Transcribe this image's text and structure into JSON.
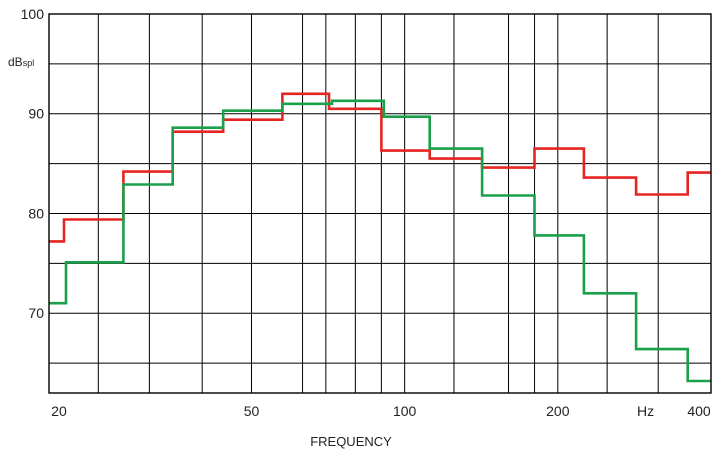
{
  "chart_data": {
    "type": "line",
    "step": true,
    "x_scale": "log",
    "xlabel": "FREQUENCY",
    "xlim": [
      20,
      400
    ],
    "ylim": [
      62,
      100
    ],
    "grid": true,
    "y_unit_main": "dB",
    "y_unit_sub": "spl",
    "x_unit": "Hz",
    "x_ticks": [
      {
        "value": 20,
        "label": "20"
      },
      {
        "value": 50,
        "label": "50"
      },
      {
        "value": 100,
        "label": "100"
      },
      {
        "value": 200,
        "label": "200"
      },
      {
        "value": 400,
        "label": "400"
      }
    ],
    "y_ticks": [
      {
        "value": 100,
        "label": "100"
      },
      {
        "value": 90,
        "label": "90"
      },
      {
        "value": 80,
        "label": "80"
      },
      {
        "value": 70,
        "label": "70"
      }
    ],
    "x_gridlines": [
      25,
      31.5,
      40,
      50,
      63,
      80,
      100,
      125,
      160,
      200,
      250,
      315,
      400
    ],
    "x_minor_gridlines": [
      70,
      90,
      180
    ],
    "y_gridlines": [
      65,
      70,
      75,
      80,
      85,
      90,
      95
    ],
    "series": [
      {
        "color": "#e52521",
        "x": [
          20,
          21.4,
          28.0,
          35.0,
          44.0,
          57.5,
          71.0,
          90.0,
          112.0,
          142.0,
          180.0,
          225.0,
          285.0,
          360.0,
          400
        ],
        "y": [
          77.2,
          79.4,
          84.2,
          88.2,
          89.4,
          92.0,
          90.5,
          86.3,
          85.5,
          84.6,
          86.5,
          83.6,
          81.9,
          84.1,
          84.1
        ]
      },
      {
        "color": "#1aa04a",
        "x": [
          20,
          21.6,
          28.0,
          35.0,
          44.0,
          57.5,
          72.0,
          91.0,
          112.0,
          142.0,
          180.0,
          225.0,
          285.0,
          360.0,
          400
        ],
        "y": [
          71.0,
          75.1,
          82.9,
          88.6,
          90.3,
          91.0,
          91.3,
          89.7,
          86.5,
          81.8,
          77.8,
          72.0,
          66.4,
          63.2,
          63.2
        ]
      }
    ]
  }
}
